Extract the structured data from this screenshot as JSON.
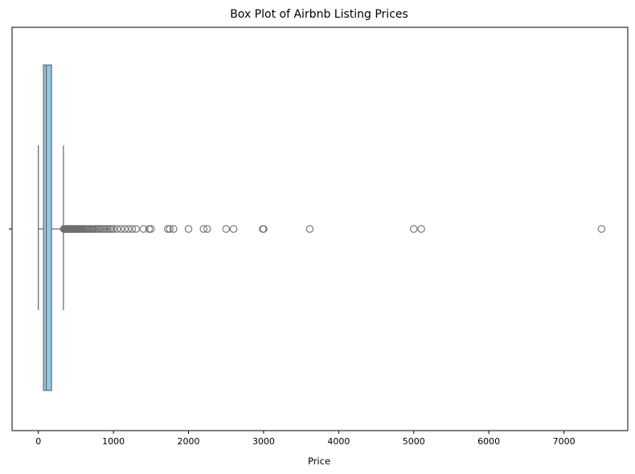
{
  "chart_data": {
    "type": "box",
    "title": "Box Plot of Airbnb Listing Prices",
    "xlabel": "Price",
    "ylabel": "",
    "orientation": "horizontal",
    "xlim": [
      -350,
      7850
    ],
    "xticks": [
      0,
      1000,
      2000,
      3000,
      4000,
      5000,
      6000,
      7000
    ],
    "box": {
      "whisker_low": 0,
      "q1": 69,
      "median": 106,
      "q3": 175,
      "whisker_high": 334
    },
    "outliers": [
      340,
      350,
      360,
      370,
      380,
      390,
      400,
      410,
      420,
      430,
      440,
      450,
      460,
      470,
      480,
      490,
      500,
      510,
      520,
      530,
      540,
      550,
      560,
      575,
      590,
      600,
      615,
      630,
      650,
      665,
      680,
      700,
      715,
      730,
      750,
      770,
      790,
      800,
      825,
      850,
      875,
      900,
      925,
      950,
      975,
      1000,
      1050,
      1100,
      1150,
      1200,
      1250,
      1300,
      1400,
      1475,
      1500,
      1725,
      1750,
      1800,
      2000,
      2200,
      2250,
      2500,
      2600,
      2990,
      3000,
      3615,
      5000,
      5100,
      7500
    ],
    "grid": false,
    "colors": {
      "box_fill": "#8ecae6",
      "lines": "#6e6e6e",
      "outlier_edge": "#6e6e6e"
    }
  }
}
